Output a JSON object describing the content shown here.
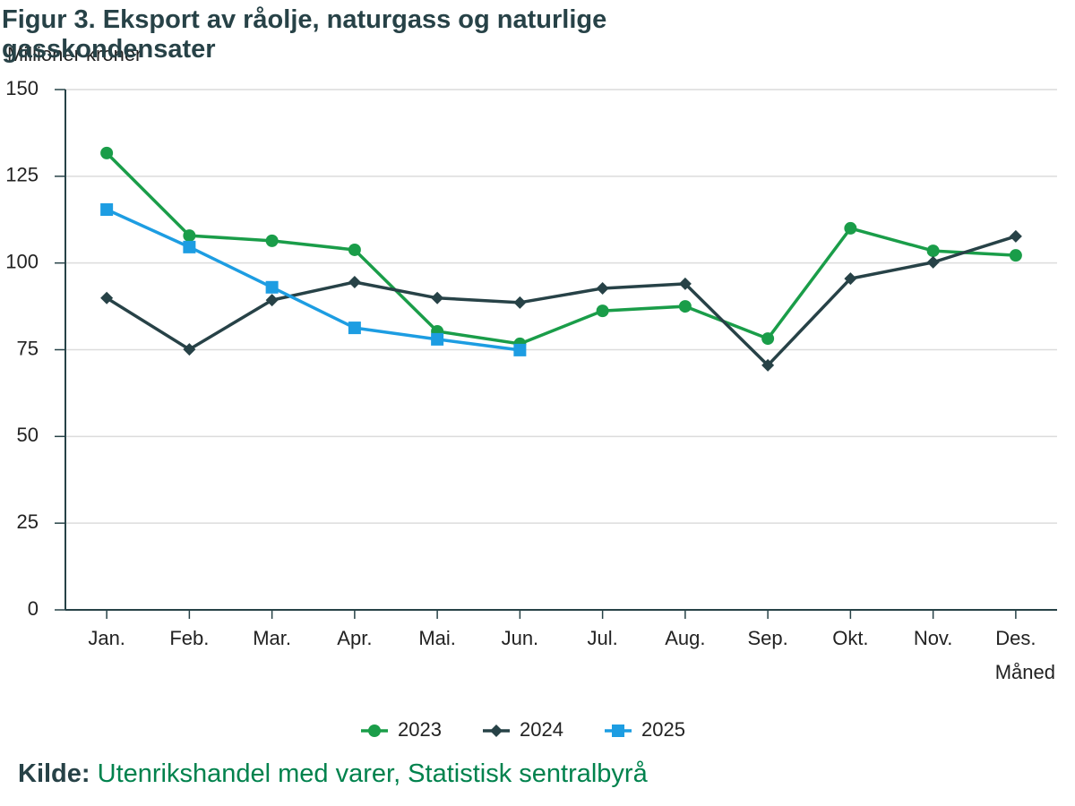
{
  "chart_data": {
    "type": "line",
    "title": "Figur 3. Eksport av råolje, naturgass og naturlige gasskondensater",
    "y_label": "Millioner kroner",
    "x_label": "Måned",
    "categories": [
      "Jan.",
      "Feb.",
      "Mar.",
      "Apr.",
      "Mai.",
      "Jun.",
      "Jul.",
      "Aug.",
      "Sep.",
      "Okt.",
      "Nov.",
      "Des."
    ],
    "series": [
      {
        "name": "2023",
        "color": "#1a9d49",
        "marker": "circle",
        "values": [
          131.7,
          107.9,
          106.4,
          103.8,
          80.3,
          76.7,
          86.2,
          87.5,
          78.2,
          110.0,
          103.5,
          102.2
        ]
      },
      {
        "name": "2024",
        "color": "#274247",
        "marker": "diamond",
        "values": [
          89.9,
          75.1,
          89.3,
          94.5,
          89.9,
          88.6,
          92.7,
          94.0,
          70.5,
          95.5,
          100.2,
          107.7
        ]
      },
      {
        "name": "2025",
        "color": "#1d9de2",
        "marker": "square",
        "values": [
          115.4,
          104.6,
          93.0,
          81.3,
          78.0,
          74.9,
          null,
          null,
          null,
          null,
          null,
          null
        ]
      }
    ],
    "ylim": [
      0,
      150
    ],
    "yticks": [
      0,
      25,
      50,
      75,
      100,
      125,
      150
    ],
    "grid": true,
    "legend": "bottom",
    "source": {
      "label": "Kilde:",
      "text": "Utenrikshandel med varer, Statistisk sentralbyrå"
    }
  }
}
